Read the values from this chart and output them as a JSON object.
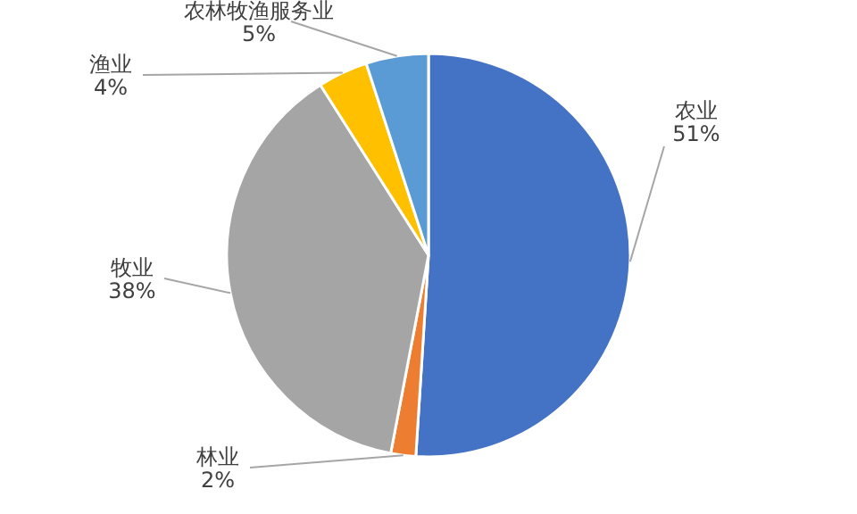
{
  "chart_data": {
    "type": "pie",
    "categories": [
      "农业",
      "林业",
      "牧业",
      "渔业",
      "农林牧渔服务业"
    ],
    "values": [
      51,
      2,
      38,
      4,
      5
    ],
    "value_labels": [
      "51%",
      "2%",
      "38%",
      "4%",
      "5%"
    ],
    "colors": [
      "#4472c4",
      "#ed7d31",
      "#a5a5a5",
      "#ffc000",
      "#5b9bd5"
    ],
    "legend": false
  }
}
